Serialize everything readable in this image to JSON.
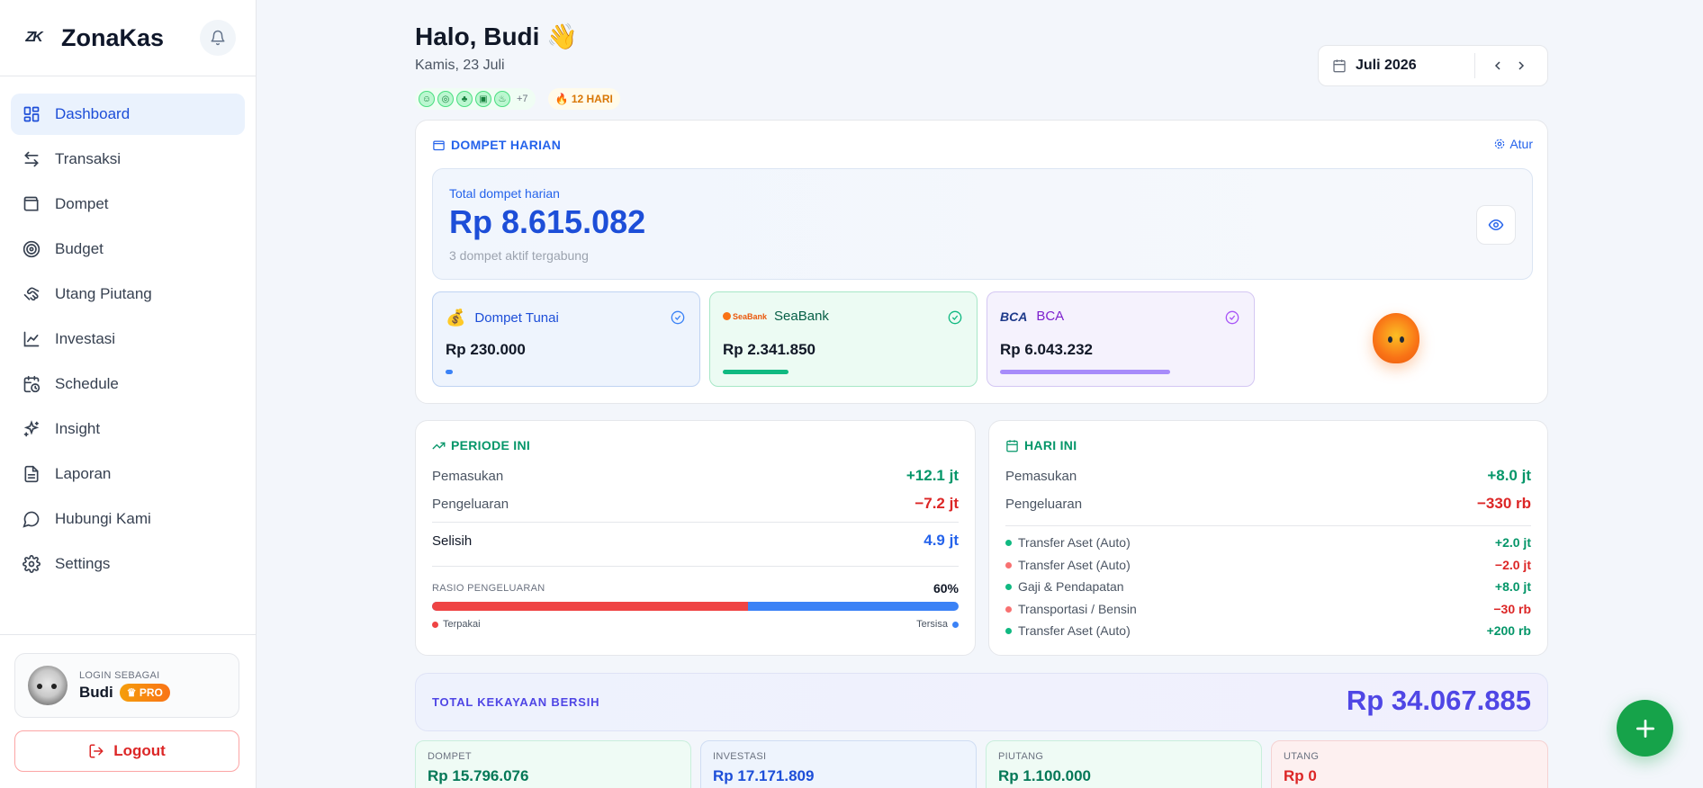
{
  "brand": {
    "logo": "ZK",
    "name": "ZonaKas"
  },
  "sidebar": {
    "items": [
      {
        "label": "Dashboard",
        "icon": "dashboard-icon",
        "active": true
      },
      {
        "label": "Transaksi",
        "icon": "transfer-arrows-icon"
      },
      {
        "label": "Dompet",
        "icon": "wallet-icon"
      },
      {
        "label": "Budget",
        "icon": "target-icon"
      },
      {
        "label": "Utang Piutang",
        "icon": "handshake-icon"
      },
      {
        "label": "Investasi",
        "icon": "chart-line-icon"
      },
      {
        "label": "Schedule",
        "icon": "calendar-clock-icon"
      },
      {
        "label": "Insight",
        "icon": "sparkles-icon"
      },
      {
        "label": "Laporan",
        "icon": "document-icon"
      },
      {
        "label": "Hubungi Kami",
        "icon": "chat-bubble-icon"
      },
      {
        "label": "Settings",
        "icon": "gear-icon"
      }
    ],
    "user": {
      "login_as": "LOGIN SEBAGAI",
      "name": "Budi",
      "badge": "PRO"
    },
    "logout_label": "Logout"
  },
  "header": {
    "greeting": "Halo, Budi 👋",
    "date": "Kamis, 23 Juli",
    "achievements_more": "+7",
    "streak": "🔥 12 HARI",
    "month": "Juli 2026"
  },
  "wallet_section": {
    "title": "DOMPET HARIAN",
    "settings_label": "Atur",
    "total_label": "Total dompet harian",
    "total_value": "Rp 8.615.082",
    "total_sub": "3 dompet aktif tergabung",
    "wallets": [
      {
        "name": "Dompet Tunai",
        "amount": "Rp 230.000",
        "share": 0.027,
        "color": "#3b82f6",
        "name_color": "#1d4ed8"
      },
      {
        "name": "SeaBank",
        "logo_text": "SeaBank",
        "amount": "Rp 2.341.850",
        "share": 0.272,
        "color": "#10b981",
        "name_color": "#065f46"
      },
      {
        "name": "BCA",
        "logo_text": "BCA",
        "amount": "Rp 6.043.232",
        "share": 0.701,
        "color": "#a78bfa",
        "name_color": "#7e22ce"
      }
    ]
  },
  "period": {
    "title": "PERIODE INI",
    "income_label": "Pemasukan",
    "income": "+12.1 jt",
    "expense_label": "Pengeluaran",
    "expense": "−7.2 jt",
    "diff_label": "Selisih",
    "diff": "4.9 jt",
    "ratio_label": "RASIO PENGELUARAN",
    "ratio_pct": "60%",
    "ratio_value": 0.6,
    "used_label": "Terpakai",
    "left_label": "Tersisa"
  },
  "today": {
    "title": "HARI INI",
    "income_label": "Pemasukan",
    "income": "+8.0 jt",
    "expense_label": "Pengeluaran",
    "expense": "−330 rb",
    "transactions": [
      {
        "name": "Transfer Aset (Auto)",
        "amount": "+2.0 jt",
        "type": "in"
      },
      {
        "name": "Transfer Aset (Auto)",
        "amount": "−2.0 jt",
        "type": "out"
      },
      {
        "name": "Gaji & Pendapatan",
        "amount": "+8.0 jt",
        "type": "in"
      },
      {
        "name": "Transportasi / Bensin",
        "amount": "−30 rb",
        "type": "out"
      },
      {
        "name": "Transfer Aset (Auto)",
        "amount": "+200 rb",
        "type": "in"
      }
    ]
  },
  "networth": {
    "label": "TOTAL KEKAYAAN BERSIH",
    "value": "Rp 34.067.885",
    "assets": [
      {
        "label": "DOMPET",
        "value": "Rp 15.796.076",
        "color": "#047857"
      },
      {
        "label": "INVESTASI",
        "value": "Rp 17.171.809",
        "color": "#1d4ed8"
      },
      {
        "label": "PIUTANG",
        "value": "Rp 1.100.000",
        "color": "#047857"
      },
      {
        "label": "UTANG",
        "value": "Rp 0",
        "color": "#dc2626"
      }
    ]
  },
  "colors": {
    "accent": "#2563eb",
    "positive": "#059669",
    "negative": "#dc2626",
    "fab": "#16a34a"
  }
}
